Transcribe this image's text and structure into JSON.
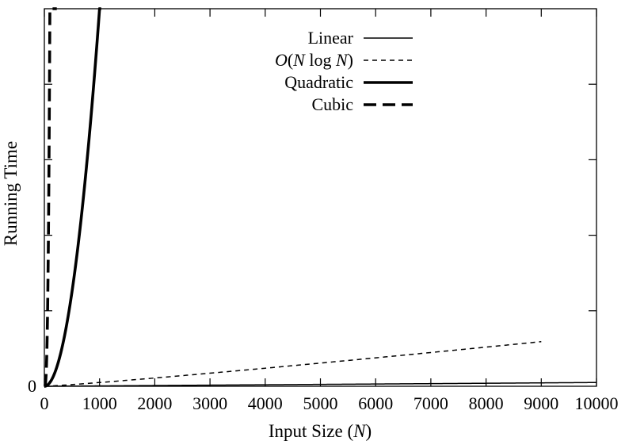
{
  "chart_data": {
    "type": "line",
    "title": "",
    "xlabel": "Input Size (N)",
    "ylabel": "Running Time",
    "xlim": [
      0,
      10000
    ],
    "ylim": [
      0,
      1000000
    ],
    "x_ticks": [
      0,
      1000,
      2000,
      3000,
      4000,
      5000,
      6000,
      7000,
      8000,
      9000,
      10000
    ],
    "x_tick_labels": [
      "0",
      "1000",
      "2000",
      "3000",
      "4000",
      "5000",
      "6000",
      "7000",
      "8000",
      "9000",
      "10000"
    ],
    "y_tick_labels": [
      "0"
    ],
    "y_ticks_unlabeled": 4,
    "grid": false,
    "legend_position": "top-right",
    "series": [
      {
        "name": "Linear",
        "style": "solid-thin",
        "function": "N",
        "x_range": [
          0,
          10000
        ]
      },
      {
        "name": "O(N log N)",
        "style": "dashed-thin",
        "function": "N*log2(N)",
        "x_range": [
          0,
          9000
        ]
      },
      {
        "name": "Quadratic",
        "style": "solid-thick",
        "function": "N^2",
        "x_range": [
          0,
          1030
        ]
      },
      {
        "name": "Cubic",
        "style": "dashed-thick",
        "function": "N^3",
        "x_range": [
          0,
          225
        ]
      }
    ]
  }
}
